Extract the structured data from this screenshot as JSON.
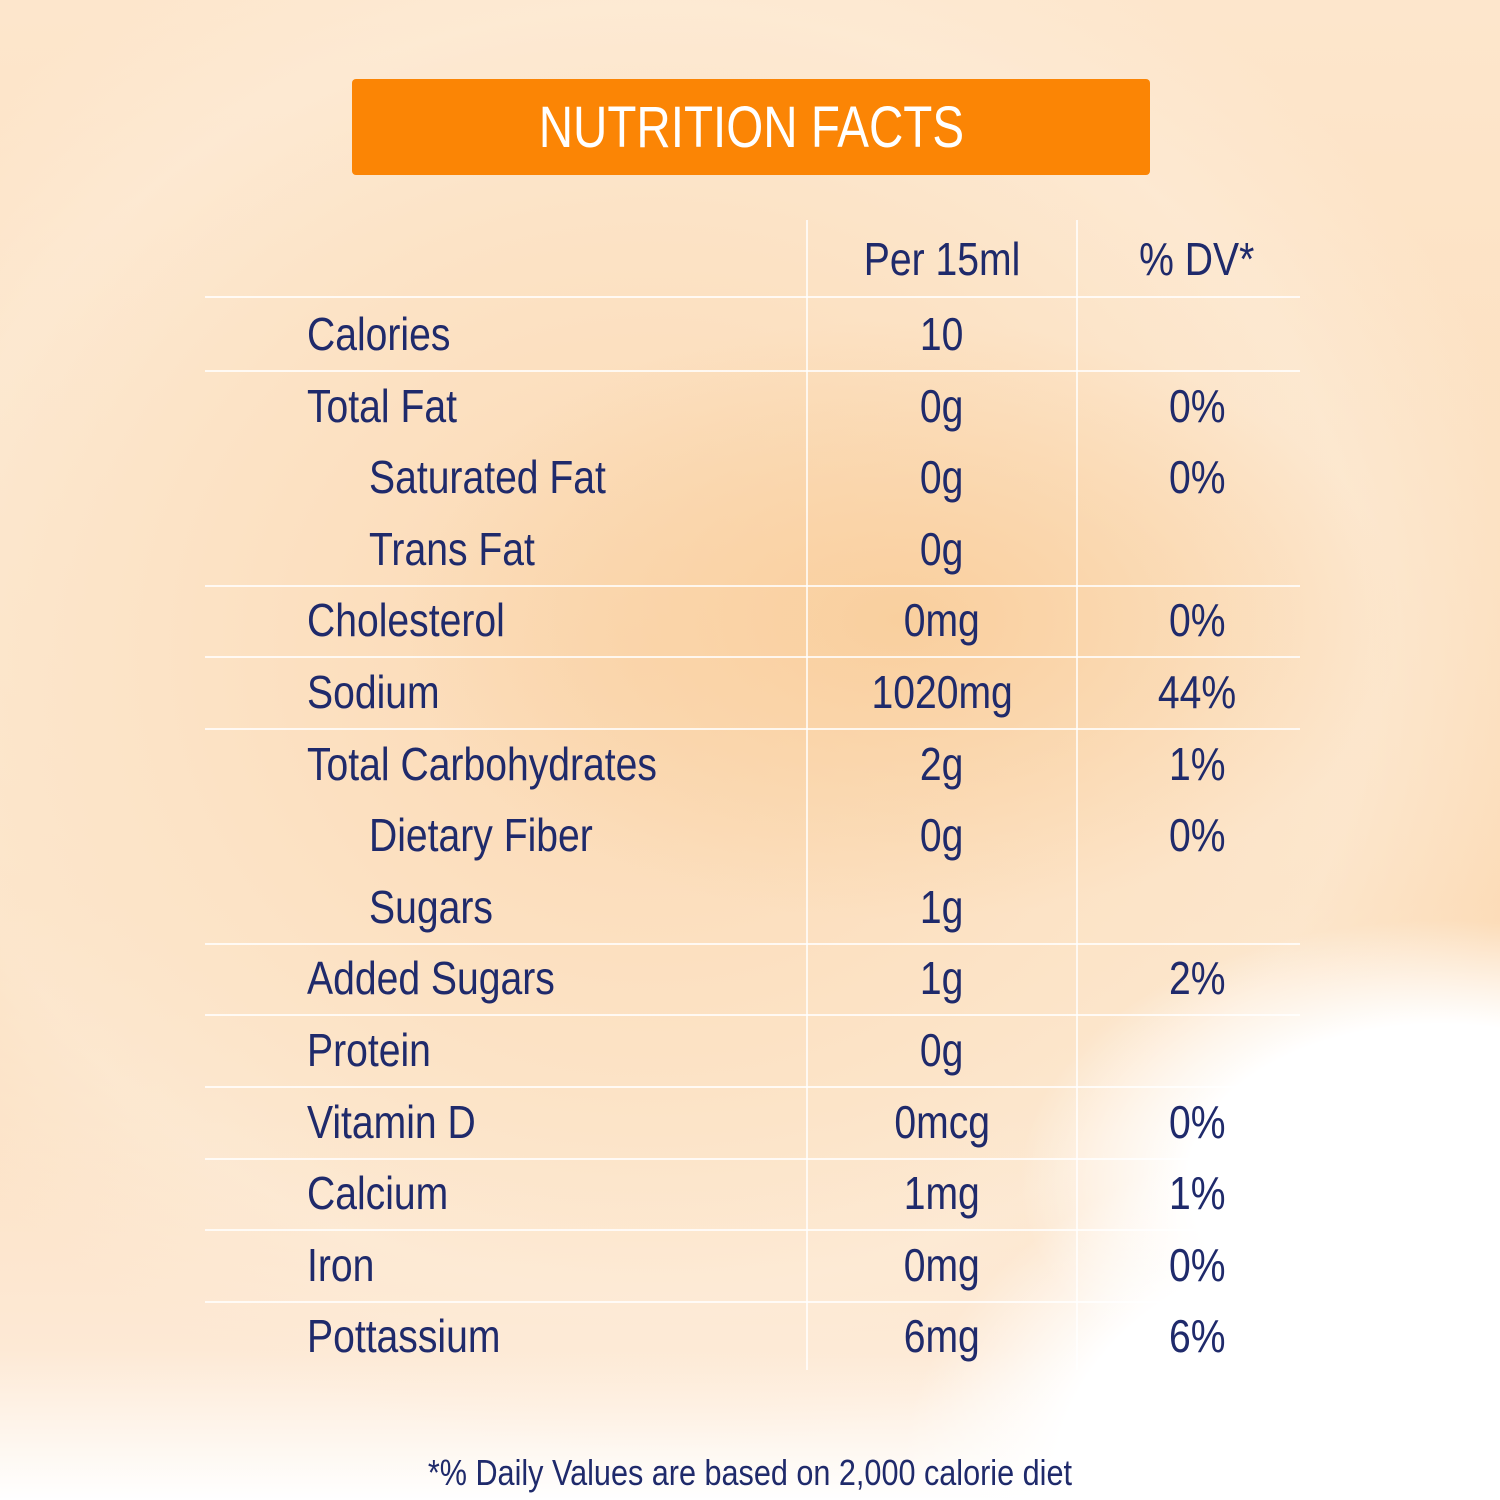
{
  "title": "NUTRITION FACTS",
  "colors": {
    "banner": "#fb8505",
    "text": "#1f2a6b",
    "background": "#fcdcb8"
  },
  "columns": {
    "amount": "Per 15ml",
    "dv": "% DV*"
  },
  "rows": [
    {
      "label": "Calories",
      "amount": "10",
      "dv": "",
      "indent": false,
      "divider": true
    },
    {
      "label": "Total Fat",
      "amount": "0g",
      "dv": "0%",
      "indent": false,
      "divider": false
    },
    {
      "label": "Saturated Fat",
      "amount": "0g",
      "dv": "0%",
      "indent": true,
      "divider": false
    },
    {
      "label": "Trans Fat",
      "amount": "0g",
      "dv": "",
      "indent": true,
      "divider": true
    },
    {
      "label": "Cholesterol",
      "amount": "0mg",
      "dv": "0%",
      "indent": false,
      "divider": true
    },
    {
      "label": "Sodium",
      "amount": "1020mg",
      "dv": "44%",
      "indent": false,
      "divider": true
    },
    {
      "label": "Total Carbohydrates",
      "amount": "2g",
      "dv": "1%",
      "indent": false,
      "divider": false
    },
    {
      "label": "Dietary Fiber",
      "amount": "0g",
      "dv": "0%",
      "indent": true,
      "divider": false
    },
    {
      "label": "Sugars",
      "amount": "1g",
      "dv": "",
      "indent": true,
      "divider": true
    },
    {
      "label": "Added Sugars",
      "amount": "1g",
      "dv": "2%",
      "indent": false,
      "divider": true
    },
    {
      "label": "Protein",
      "amount": "0g",
      "dv": "",
      "indent": false,
      "divider": true
    },
    {
      "label": "Vitamin D",
      "amount": "0mcg",
      "dv": "0%",
      "indent": false,
      "divider": true
    },
    {
      "label": "Calcium",
      "amount": "1mg",
      "dv": "1%",
      "indent": false,
      "divider": true
    },
    {
      "label": "Iron",
      "amount": "0mg",
      "dv": "0%",
      "indent": false,
      "divider": true
    },
    {
      "label": "Pottassium",
      "amount": "6mg",
      "dv": "6%",
      "indent": false,
      "divider": false
    }
  ],
  "footnote": "*% Daily Values are based on 2,000 calorie diet"
}
